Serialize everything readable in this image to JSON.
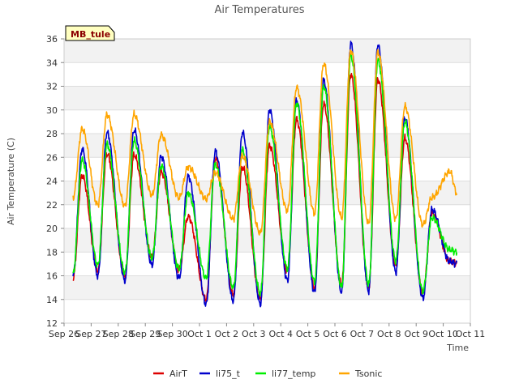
{
  "chart_data": {
    "type": "line",
    "title": "Air Temperatures",
    "xlabel": "Time",
    "ylabel": "Air Temperature (C)",
    "station_label": "MB_tule",
    "ylim": [
      12,
      36
    ],
    "xlim": [
      "2022-09-26",
      "2022-10-11"
    ],
    "yticks": [
      12,
      14,
      16,
      18,
      20,
      22,
      24,
      26,
      28,
      30,
      32,
      34,
      36
    ],
    "xticks": [
      "Sep 26",
      "Sep 27",
      "Sep 28",
      "Sep 29",
      "Sep 30",
      "Oct 1",
      "Oct 2",
      "Oct 3",
      "Oct 4",
      "Oct 5",
      "Oct 6",
      "Oct 7",
      "Oct 8",
      "Oct 9",
      "Oct 10",
      "Oct 11"
    ],
    "grid": "horizontal bands",
    "legend": "bottom",
    "x": [
      "2022-09-26 08:00",
      "2022-09-26 16:00",
      "2022-09-27 06:00",
      "2022-09-27 14:00",
      "2022-09-28 06:00",
      "2022-09-28 14:00",
      "2022-09-29 06:00",
      "2022-09-29 14:00",
      "2022-09-30 06:00",
      "2022-09-30 14:00",
      "2022-10-01 06:00",
      "2022-10-01 14:00",
      "2022-10-02 06:00",
      "2022-10-02 14:00",
      "2022-10-03 06:00",
      "2022-10-03 14:00",
      "2022-10-04 06:00",
      "2022-10-04 14:00",
      "2022-10-05 06:00",
      "2022-10-05 14:00",
      "2022-10-06 06:00",
      "2022-10-06 14:00",
      "2022-10-07 06:00",
      "2022-10-07 14:00",
      "2022-10-08 06:00",
      "2022-10-08 14:00",
      "2022-10-09 06:00",
      "2022-10-09 14:00",
      "2022-10-10 06:00",
      "2022-10-10 12:00"
    ],
    "series": [
      {
        "name": "AirT",
        "color": "#dd0000",
        "values": [
          15.8,
          24.5,
          16.4,
          26.3,
          15.9,
          26.2,
          17.6,
          24.8,
          16.5,
          21.0,
          14.0,
          25.9,
          14.4,
          25.2,
          14.0,
          27.0,
          16.4,
          29.2,
          15.0,
          30.5,
          15.2,
          33.0,
          15.0,
          32.6,
          16.8,
          27.6,
          14.5,
          21.3,
          17.2,
          17.1
        ]
      },
      {
        "name": "li75_t",
        "color": "#0000cc",
        "values": [
          16.0,
          26.7,
          16.0,
          28.1,
          15.6,
          28.3,
          16.9,
          26.1,
          15.8,
          24.4,
          13.6,
          26.5,
          13.9,
          28.1,
          13.6,
          30.0,
          15.6,
          30.8,
          14.6,
          32.5,
          14.6,
          35.6,
          14.7,
          35.5,
          16.3,
          29.3,
          14.1,
          21.6,
          17.2,
          17.0
        ]
      },
      {
        "name": "li77_temp",
        "color": "#00ee00",
        "values": [
          16.2,
          25.8,
          16.9,
          27.1,
          16.3,
          27.4,
          17.5,
          25.3,
          16.6,
          23.0,
          15.8,
          25.4,
          15.0,
          26.6,
          14.5,
          28.6,
          16.6,
          30.6,
          15.5,
          32.0,
          15.0,
          34.6,
          15.3,
          34.2,
          17.3,
          29.0,
          14.7,
          20.9,
          18.2,
          18.0
        ]
      },
      {
        "name": "Tsonic",
        "color": "#ffa500",
        "values": [
          22.6,
          28.4,
          22.0,
          29.6,
          21.9,
          29.6,
          22.8,
          27.9,
          22.6,
          25.2,
          22.5,
          24.7,
          20.8,
          26.1,
          19.6,
          29.0,
          21.5,
          31.9,
          21.3,
          33.9,
          20.9,
          35.0,
          20.4,
          34.9,
          20.8,
          30.3,
          20.3,
          22.6,
          24.8,
          23.0
        ]
      }
    ]
  }
}
